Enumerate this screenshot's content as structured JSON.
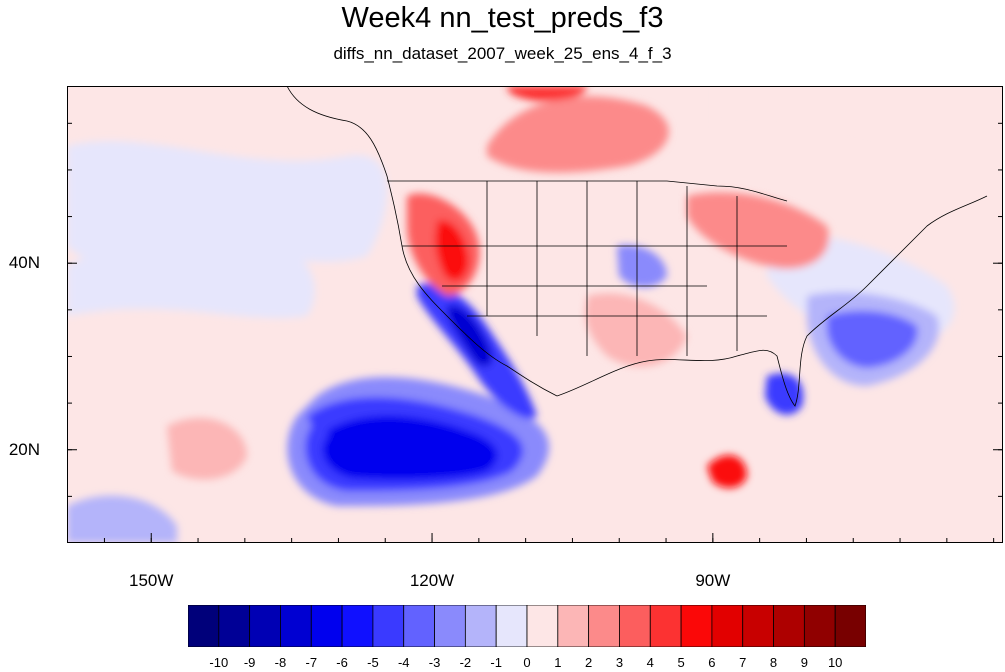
{
  "title": "Week4 nn_test_preds_f3",
  "subtitle": "diffs_nn_dataset_2007_week_25_ens_4_f_3",
  "map": {
    "lat_ticks": [
      {
        "label": "40N",
        "value": 40
      },
      {
        "label": "20N",
        "value": 20
      }
    ],
    "lon_ticks": [
      {
        "label": "150W",
        "value": -150
      },
      {
        "label": "120W",
        "value": -120
      },
      {
        "label": "90W",
        "value": -90
      }
    ],
    "lon_range": [
      -159,
      -59
    ],
    "lat_range": [
      10,
      59
    ]
  },
  "colorbar": {
    "labels": [
      "-10",
      "-9",
      "-8",
      "-7",
      "-6",
      "-5",
      "-4",
      "-3",
      "-2",
      "-1",
      "0",
      "1",
      "2",
      "3",
      "4",
      "5",
      "6",
      "7",
      "8",
      "9",
      "10"
    ],
    "colors": [
      "#00007a",
      "#000096",
      "#0000b4",
      "#0000d2",
      "#0000ee",
      "#1010ff",
      "#3a3aff",
      "#6262ff",
      "#8a8afc",
      "#b4b4fa",
      "#e6e6fc",
      "#fde6e6",
      "#fcb6b6",
      "#fc8a8a",
      "#fc5e5e",
      "#fc3232",
      "#fb0808",
      "#e20000",
      "#c80000",
      "#ad0000",
      "#900000",
      "#780000"
    ]
  }
}
